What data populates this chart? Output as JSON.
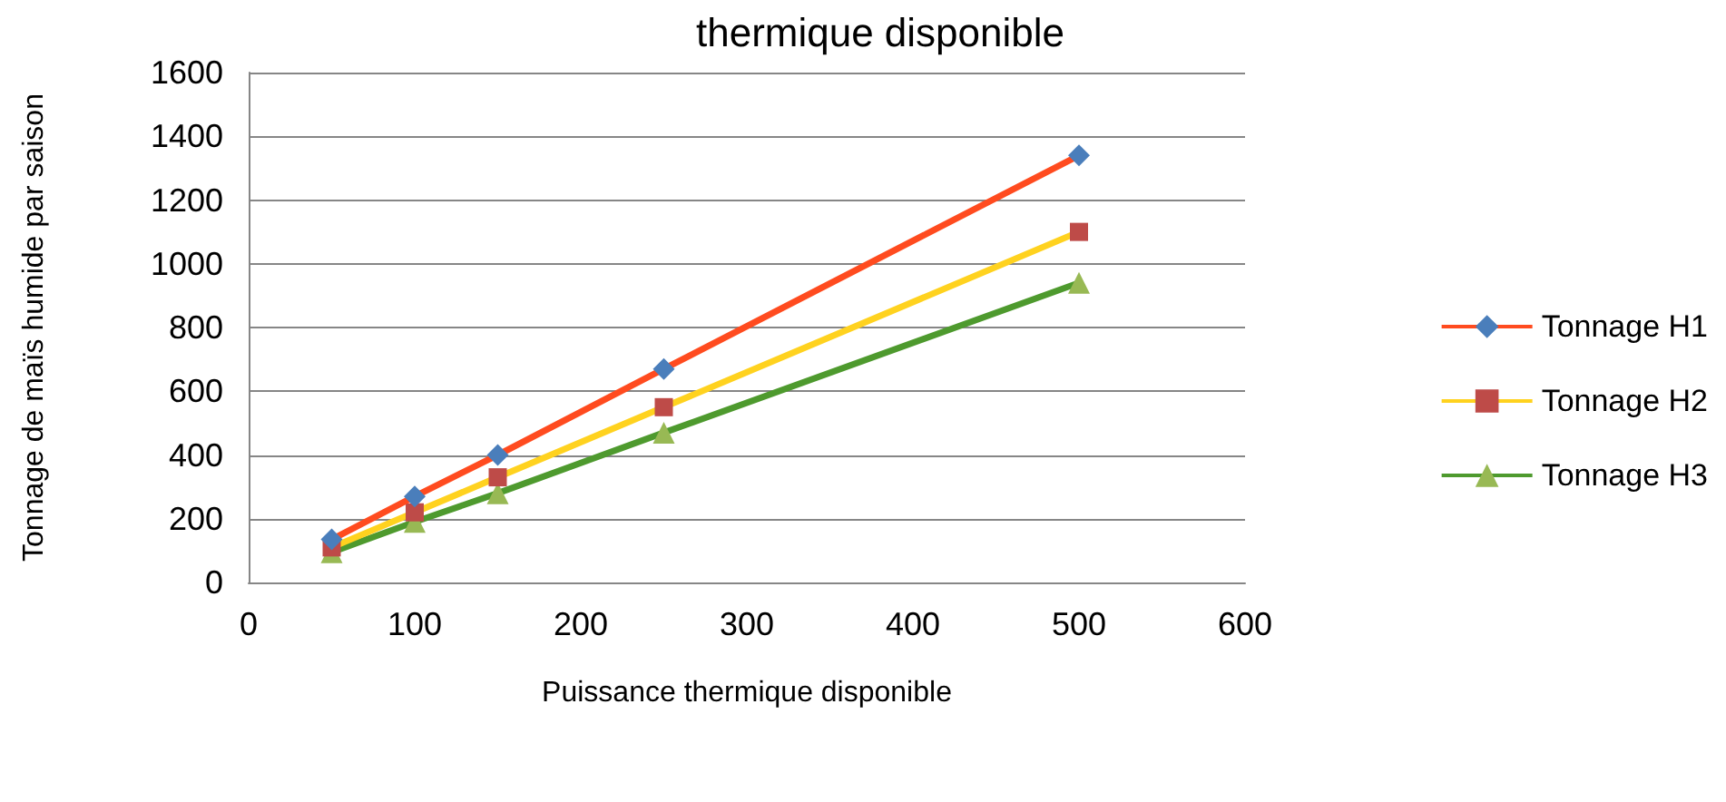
{
  "chart_data": {
    "type": "line",
    "title": "thermique disponible",
    "xlabel": "Puissance thermique disponible",
    "ylabel": "Tonnage de maïs humide par saison",
    "x": [
      50,
      100,
      150,
      250,
      500
    ],
    "series": [
      {
        "name": "Tonnage H1",
        "color": "#ff4b1f",
        "colors": [
          "#4a7ebb",
          "#4a7ebb",
          "#4a7ebb",
          "#4a7ebb",
          "#4a7ebb"
        ],
        "marker": "diamond",
        "values": [
          135,
          270,
          400,
          670,
          1340
        ]
      },
      {
        "name": "Tonnage H2",
        "color": "#ffd21f",
        "colors": [
          "#be4b48",
          "#be4b48",
          "#be4b48",
          "#be4b48",
          "#be4b48"
        ],
        "marker": "square",
        "values": [
          110,
          220,
          330,
          550,
          1100
        ]
      },
      {
        "name": "Tonnage H3",
        "color": "#4e9a2e",
        "colors": [
          "#98b954",
          "#98b954",
          "#98b954",
          "#98b954",
          "#98b954"
        ],
        "marker": "triangle",
        "values": [
          95,
          190,
          280,
          470,
          940
        ]
      }
    ],
    "xlim": [
      0,
      600
    ],
    "xticks": [
      0,
      100,
      200,
      300,
      400,
      500,
      600
    ],
    "ylim": [
      0,
      1600
    ],
    "yticks": [
      0,
      200,
      400,
      600,
      800,
      1000,
      1200,
      1400,
      1600
    ],
    "grid": "y",
    "legend": "right"
  }
}
